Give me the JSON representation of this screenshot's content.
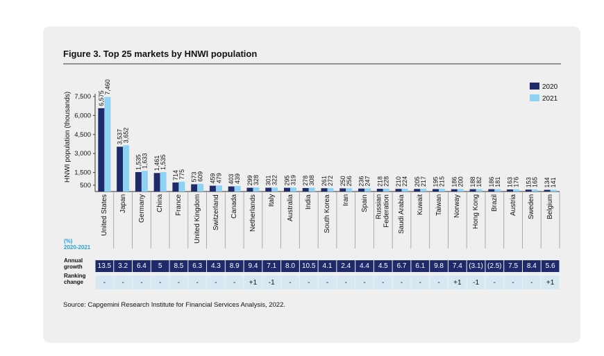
{
  "chart_data": {
    "type": "bar",
    "title": "Figure 3. Top 25 markets by HNWI population",
    "y_label": "HNWI population (thousands)",
    "categories": [
      "United States",
      "Japan",
      "Germany",
      "China",
      "France",
      "United Kingdom",
      "Switzerland",
      "Canada",
      "Netherlands",
      "Italy",
      "Australia",
      "India",
      "South Korea",
      "Iran",
      "Spain",
      "Russian Federation",
      "Saudi Arabia",
      "Kuwait",
      "Taiwan",
      "Norway",
      "Hong Kong",
      "Brazil",
      "Austria",
      "Sweden",
      "Belgium"
    ],
    "series": [
      {
        "name": "2020",
        "color": "#1f2a6b",
        "values": [
          6575,
          3537,
          1535,
          1461,
          714,
          573,
          459,
          403,
          299,
          301,
          295,
          278,
          261,
          250,
          236,
          218,
          210,
          205,
          195,
          186,
          188,
          186,
          163,
          153,
          134
        ],
        "value_labels": [
          "6,575",
          "3,537",
          "1,535",
          "1,461",
          "714",
          "573",
          "459",
          "403",
          "299",
          "301",
          "295",
          "278",
          "261",
          "250",
          "236",
          "218",
          "210",
          "205",
          "195",
          "186",
          "188",
          "186",
          "163",
          "153",
          "134"
        ]
      },
      {
        "name": "2021",
        "color": "#8fd3f4",
        "values": [
          7460,
          3652,
          1633,
          1535,
          775,
          609,
          479,
          439,
          328,
          322,
          319,
          308,
          272,
          256,
          247,
          228,
          224,
          217,
          215,
          200,
          182,
          181,
          176,
          165,
          141
        ],
        "value_labels": [
          "7,460",
          "3,652",
          "1,633",
          "1,535",
          "775",
          "609",
          "479",
          "439",
          "328",
          "322",
          "319",
          "308",
          "272",
          "256",
          "247",
          "228",
          "224",
          "217",
          "215",
          "200",
          "182",
          "181",
          "176",
          "165",
          "141"
        ]
      }
    ],
    "ylim": [
      0,
      7500
    ],
    "yticks": [
      500,
      {
        "value": 1500,
        "label": "1,500"
      },
      {
        "value": 3000,
        "label": "3,000"
      },
      {
        "value": 4500,
        "label": "4,500"
      },
      {
        "value": 6000,
        "label": "6,000"
      },
      {
        "value": 7500,
        "label": "7,500"
      }
    ],
    "legend": "top-right"
  },
  "table": {
    "header": "(%)",
    "subheader": "2020-2021",
    "rows": [
      {
        "label": "Annual growth",
        "color": "#1f2a6b",
        "text_color": "#ffffff",
        "cells": [
          "13.5",
          "3.2",
          "6.4",
          "5",
          "8.5",
          "6.3",
          "4.3",
          "8.9",
          "9.4",
          "7.1",
          "8.0",
          "10.5",
          "4.1",
          "2.4",
          "4.4",
          "4.5",
          "6.7",
          "6.1",
          "9.8",
          "7.4",
          "(3.1)",
          "(2.5)",
          "7.5",
          "8.4",
          "5.6"
        ]
      },
      {
        "label": "Ranking change",
        "color": "#d8e8f3",
        "text_color": "#111111",
        "cells": [
          "-",
          "-",
          "-",
          "-",
          "-",
          "-",
          "-",
          "-",
          "+1",
          "-1",
          "-",
          "-",
          "-",
          "-",
          "-",
          "-",
          "-",
          "-",
          "-",
          "+1",
          "-1",
          "-",
          "-",
          "-",
          "+1"
        ]
      }
    ]
  },
  "source": "Source: Capgemini Research Institute for Financial Services Analysis, 2022."
}
